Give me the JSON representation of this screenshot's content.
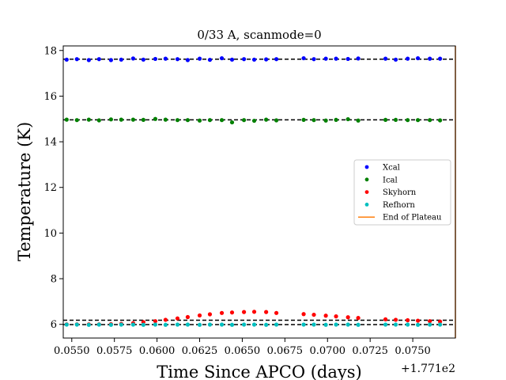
{
  "chart_data": {
    "type": "scatter",
    "title": "0/33 A, scanmode=0",
    "xlabel": "Time Since APCO (days)",
    "ylabel": "Temperature (K)",
    "x_offset_label": "+1.771e2",
    "xlim": [
      0.0545,
      0.0775
    ],
    "ylim": [
      5.4,
      18.2
    ],
    "xticks": [
      0.055,
      0.0575,
      0.06,
      0.0625,
      0.065,
      0.0675,
      0.07,
      0.0725,
      0.075
    ],
    "xtick_labels": [
      "0.0550",
      "0.0575",
      "0.0600",
      "0.0625",
      "0.0650",
      "0.0675",
      "0.0700",
      "0.0725",
      "0.0750"
    ],
    "yticks": [
      6,
      8,
      10,
      12,
      14,
      16,
      18
    ],
    "ytick_labels": [
      "6",
      "8",
      "10",
      "12",
      "14",
      "16",
      "18"
    ],
    "grid": false,
    "legend_position": "center-right",
    "x": [
      0.0547,
      0.0553,
      0.056,
      0.0566,
      0.0573,
      0.0579,
      0.0586,
      0.0592,
      0.0599,
      0.0605,
      0.0612,
      0.0618,
      0.0625,
      0.0631,
      0.0638,
      0.0644,
      0.0651,
      0.0657,
      0.0664,
      0.067,
      0.0686,
      0.0692,
      0.0699,
      0.0705,
      0.0712,
      0.0718,
      0.0734,
      0.074,
      0.0747,
      0.0753,
      0.076,
      0.0766
    ],
    "series": [
      {
        "name": "Xcal",
        "color": "#0000ff",
        "values": [
          17.6,
          17.62,
          17.58,
          17.62,
          17.58,
          17.6,
          17.65,
          17.6,
          17.63,
          17.64,
          17.62,
          17.58,
          17.64,
          17.59,
          17.66,
          17.6,
          17.62,
          17.6,
          17.61,
          17.62,
          17.66,
          17.62,
          17.64,
          17.64,
          17.63,
          17.65,
          17.64,
          17.6,
          17.64,
          17.66,
          17.64,
          17.64
        ]
      },
      {
        "name": "Ical",
        "color": "#008000",
        "values": [
          14.97,
          14.95,
          14.97,
          14.94,
          14.98,
          14.97,
          14.97,
          14.96,
          15.0,
          14.97,
          14.95,
          14.95,
          14.93,
          14.95,
          14.95,
          14.85,
          14.95,
          14.92,
          14.97,
          14.94,
          14.96,
          14.95,
          14.93,
          14.96,
          14.99,
          14.93,
          14.96,
          14.96,
          14.95,
          14.95,
          14.95,
          14.94
        ]
      },
      {
        "name": "Skyhorn",
        "color": "#ff0000",
        "values": [
          6.0,
          6.0,
          6.0,
          6.0,
          6.01,
          6.02,
          6.05,
          6.1,
          6.14,
          6.2,
          6.26,
          6.32,
          6.39,
          6.44,
          6.5,
          6.52,
          6.54,
          6.55,
          6.54,
          6.5,
          6.45,
          6.42,
          6.38,
          6.35,
          6.31,
          6.28,
          6.22,
          6.2,
          6.18,
          6.16,
          6.14,
          6.12
        ]
      },
      {
        "name": "Refhorn",
        "color": "#00bfbf",
        "values": [
          5.99,
          5.99,
          5.98,
          5.99,
          5.98,
          5.99,
          5.99,
          5.98,
          5.99,
          5.98,
          5.99,
          5.99,
          5.98,
          5.99,
          5.99,
          5.98,
          5.99,
          5.99,
          5.98,
          5.99,
          5.99,
          5.99,
          5.98,
          5.99,
          5.99,
          5.98,
          5.99,
          5.99,
          5.99,
          5.98,
          5.99,
          5.99
        ]
      }
    ],
    "reference_lines": [
      {
        "y": 17.62,
        "style": "dashed",
        "color": "#000000"
      },
      {
        "y": 14.96,
        "style": "dashed",
        "color": "#000000"
      },
      {
        "y": 6.18,
        "style": "dashed",
        "color": "#000000"
      },
      {
        "y": 5.99,
        "style": "dashed",
        "color": "#000000"
      }
    ],
    "vertical_line": {
      "name": "End of Plateau",
      "x": 0.0775,
      "color": "#ff7f0e"
    }
  }
}
